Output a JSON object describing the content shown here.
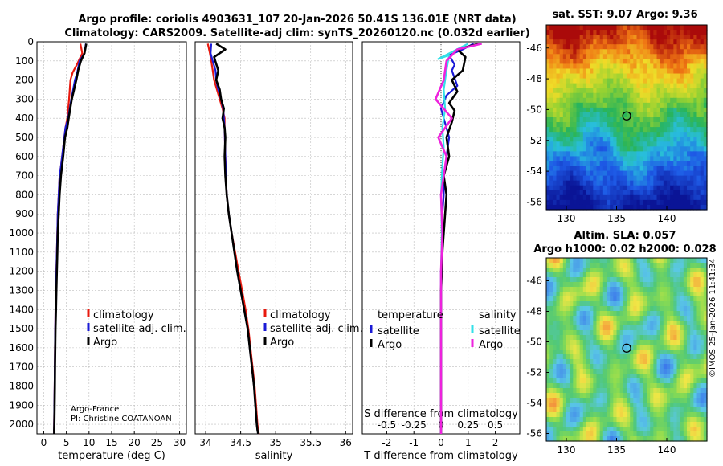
{
  "header": {
    "title_line1": "Argo profile: coriolis 4903631_107 20-Jan-2026 50.41S 136.01E (NRT data)",
    "title_line2": "Climatology: CARS2009. Satellite-adj clim: synTS_20260120.nc (0.032d earlier)"
  },
  "credits": {
    "org": "Argo-France",
    "pi": "PI: Christine COATANOAN",
    "imos": "©IMOS 25-Jan-2026 11:41:34"
  },
  "colors": {
    "climatology": "#e8190e",
    "satellite": "#1a1ad6",
    "argo": "#000000",
    "sat_salinity": "#33e0e8",
    "argo_salinity": "#ee22dd"
  },
  "chart_data": [
    {
      "type": "line",
      "name": "temperature-profile",
      "xlabel": "temperature (deg C)",
      "ylabel": "",
      "xlim": [
        -1.5,
        31.5
      ],
      "ylim": [
        2050,
        0
      ],
      "xticks": [
        0,
        5,
        10,
        15,
        20,
        25,
        30
      ],
      "yticks": [
        0,
        100,
        200,
        300,
        400,
        500,
        600,
        700,
        800,
        900,
        1000,
        1100,
        1200,
        1300,
        1400,
        1500,
        1600,
        1700,
        1800,
        1900,
        2000
      ],
      "legend": [
        "climatology",
        "satellite-adj. clim.",
        "Argo"
      ],
      "series": [
        {
          "name": "climatology",
          "color": "#e8190e",
          "x": [
            8.1,
            8.5,
            7.3,
            6.4,
            5.9,
            5.6,
            5.2,
            4.8,
            4.3,
            3.8,
            3.5,
            3.3,
            3.1,
            3.0,
            2.9,
            2.8,
            2.7,
            2.6,
            2.55,
            2.5,
            2.45,
            2.4,
            2.35,
            2.3,
            2.3
          ],
          "y": [
            10,
            60,
            120,
            160,
            200,
            300,
            400,
            450,
            550,
            650,
            700,
            800,
            900,
            1000,
            1100,
            1200,
            1300,
            1400,
            1500,
            1600,
            1700,
            1800,
            1900,
            2000,
            2050
          ]
        },
        {
          "name": "satellite-adj. clim.",
          "color": "#1a1ad6",
          "x": [
            9.3,
            9.0,
            7.9,
            7.4,
            6.9,
            6.1,
            5.4,
            4.8,
            4.3,
            3.8,
            3.5,
            3.3,
            3.1,
            3.0,
            2.9,
            2.8,
            2.7,
            2.6,
            2.55,
            2.5,
            2.45,
            2.4,
            2.35,
            2.3,
            2.3
          ],
          "y": [
            10,
            60,
            100,
            160,
            200,
            300,
            400,
            450,
            550,
            650,
            700,
            800,
            900,
            1000,
            1100,
            1200,
            1300,
            1400,
            1500,
            1600,
            1700,
            1800,
            1900,
            2000,
            2050
          ]
        },
        {
          "name": "Argo",
          "color": "#000000",
          "x": [
            9.4,
            9.0,
            8.2,
            7.6,
            7.2,
            6.2,
            5.5,
            5.2,
            4.7,
            4.3,
            3.8,
            3.5,
            3.3,
            3.1,
            3.0,
            2.9,
            2.8,
            2.7,
            2.6,
            2.55,
            2.5,
            2.45,
            2.4,
            2.35,
            2.3,
            2.3
          ],
          "y": [
            10,
            60,
            100,
            150,
            200,
            300,
            400,
            450,
            500,
            600,
            700,
            800,
            900,
            1000,
            1100,
            1200,
            1300,
            1400,
            1500,
            1600,
            1700,
            1800,
            1900,
            2000,
            2030,
            2050
          ]
        }
      ]
    },
    {
      "type": "line",
      "name": "salinity-profile",
      "xlabel": "salinity",
      "xlim": [
        33.85,
        36.1
      ],
      "ylim": [
        2050,
        0
      ],
      "xticks": [
        34,
        34.5,
        35,
        35.5,
        36
      ],
      "legend": [
        "climatology",
        "satellite-adj. clim.",
        "Argo"
      ],
      "series": [
        {
          "name": "climatology",
          "color": "#e8190e",
          "x": [
            34.03,
            34.06,
            34.08,
            34.1,
            34.12,
            34.16,
            34.2,
            34.24,
            34.27,
            34.27,
            34.28,
            34.3,
            34.33,
            34.37,
            34.42,
            34.47,
            34.52,
            34.57,
            34.61,
            34.64,
            34.67,
            34.7,
            34.72,
            34.74,
            34.75,
            34.76
          ],
          "y": [
            10,
            60,
            100,
            150,
            200,
            250,
            300,
            350,
            400,
            450,
            600,
            800,
            900,
            1000,
            1100,
            1200,
            1300,
            1400,
            1500,
            1600,
            1700,
            1800,
            1900,
            2000,
            2030,
            2050
          ]
        },
        {
          "name": "satellite-adj. clim.",
          "color": "#1a1ad6",
          "x": [
            34.08,
            34.07,
            34.1,
            34.14,
            34.15,
            34.18,
            34.22,
            34.25,
            34.26,
            34.27,
            34.28,
            34.3,
            34.33,
            34.37,
            34.41,
            34.45,
            34.5,
            34.55,
            34.6,
            34.63,
            34.66,
            34.69,
            34.71,
            34.73,
            34.74,
            34.75
          ],
          "y": [
            10,
            60,
            100,
            150,
            200,
            250,
            300,
            350,
            400,
            450,
            600,
            800,
            900,
            1000,
            1100,
            1200,
            1300,
            1400,
            1500,
            1600,
            1700,
            1800,
            1900,
            2000,
            2030,
            2050
          ]
        },
        {
          "name": "Argo",
          "color": "#000000",
          "x": [
            34.15,
            34.28,
            34.12,
            34.18,
            34.15,
            34.2,
            34.22,
            34.26,
            34.24,
            34.27,
            34.28,
            34.27,
            34.28,
            34.3,
            34.33,
            34.37,
            34.41,
            34.45,
            34.5,
            34.55,
            34.6,
            34.63,
            34.66,
            34.69,
            34.71,
            34.73,
            34.74,
            34.75
          ],
          "y": [
            10,
            40,
            80,
            150,
            200,
            250,
            300,
            350,
            400,
            450,
            500,
            600,
            700,
            800,
            900,
            1000,
            1100,
            1200,
            1300,
            1400,
            1500,
            1600,
            1700,
            1800,
            1900,
            2000,
            2030,
            2050
          ]
        }
      ]
    },
    {
      "type": "line",
      "name": "difference-profile",
      "xlabel": "T difference from climatology",
      "xlabel_top": "S difference from climatology",
      "xlim": [
        -2.9,
        2.9
      ],
      "ylim": [
        2050,
        0
      ],
      "xticks": [
        -2,
        -1,
        0,
        1,
        2
      ],
      "xticks_salinity": [
        "-0.5",
        "-0.25",
        "0",
        "0.25",
        "0.5"
      ],
      "legend_titles": [
        "temperature",
        "salinity"
      ],
      "legend": [
        "satellite",
        "Argo",
        "satellite",
        "Argo"
      ],
      "series": [
        {
          "name": "temperature satellite",
          "color": "#1a1ad6",
          "x": [
            1.2,
            0.8,
            0.3,
            0.5,
            0.4,
            0.6,
            0.2,
            0.0,
            0.1,
            0.3,
            0.2,
            0.1,
            0.1,
            0.05,
            0.05,
            0.03,
            0.0,
            0.0,
            0.0,
            0.0,
            0.0,
            0.0,
            0.0,
            0.0
          ],
          "y": [
            10,
            40,
            70,
            120,
            150,
            230,
            280,
            350,
            400,
            500,
            600,
            700,
            800,
            900,
            1000,
            1100,
            1200,
            1300,
            1400,
            1500,
            1600,
            1700,
            1800,
            2050
          ]
        },
        {
          "name": "temperature Argo",
          "color": "#000000",
          "x": [
            1.4,
            0.6,
            0.9,
            0.8,
            0.4,
            0.6,
            0.3,
            0.5,
            0.4,
            0.2,
            0.3,
            0.1,
            0.2,
            0.15,
            0.1,
            0.05,
            0.03,
            0.0,
            0.0,
            0.0,
            0.0,
            0.0
          ],
          "y": [
            10,
            40,
            80,
            150,
            200,
            260,
            320,
            360,
            420,
            500,
            600,
            700,
            800,
            900,
            1000,
            1100,
            1200,
            1300,
            1400,
            1600,
            1800,
            2050
          ]
        },
        {
          "name": "salinity satellite",
          "color": "#33e0e8",
          "x": [
            1.0,
            -0.1,
            0.3,
            0.2,
            0.1,
            0.15,
            0.05,
            0.1,
            0.05,
            0.0,
            0.03,
            0.0,
            0.0,
            0.0,
            0.0
          ],
          "y": [
            10,
            90,
            70,
            150,
            250,
            350,
            450,
            550,
            650,
            800,
            1000,
            1200,
            1400,
            1700,
            2050
          ]
        },
        {
          "name": "salinity Argo",
          "color": "#ee22dd",
          "x": [
            1.5,
            0.6,
            0.2,
            0.1,
            -0.2,
            0.4,
            -0.1,
            0.2,
            0.1,
            0.0,
            0.05,
            0.0,
            0.0,
            0.0,
            0.0
          ],
          "y": [
            10,
            40,
            100,
            200,
            300,
            400,
            500,
            600,
            700,
            800,
            1000,
            1200,
            1400,
            1700,
            2050
          ]
        }
      ]
    },
    {
      "type": "heatmap",
      "name": "sst-map",
      "title": "sat. SST: 9.07 Argo: 9.36",
      "xlim": [
        128,
        144
      ],
      "ylim": [
        -56.5,
        -44.5
      ],
      "xticks": [
        130,
        135,
        140
      ],
      "yticks": [
        -46,
        -48,
        -50,
        -52,
        -54,
        -56
      ],
      "argo_position": {
        "lon": 136.01,
        "lat": -50.41
      }
    },
    {
      "type": "heatmap",
      "name": "sla-map",
      "title_line1": "Altim. SLA: 0.057",
      "title_line2": "Argo h1000: 0.02 h2000: 0.028",
      "xlim": [
        128,
        144
      ],
      "ylim": [
        -56.5,
        -44.5
      ],
      "xticks": [
        130,
        135,
        140
      ],
      "yticks": [
        -46,
        -48,
        -50,
        -52,
        -54,
        -56
      ],
      "argo_position": {
        "lon": 136.01,
        "lat": -50.41
      }
    }
  ]
}
